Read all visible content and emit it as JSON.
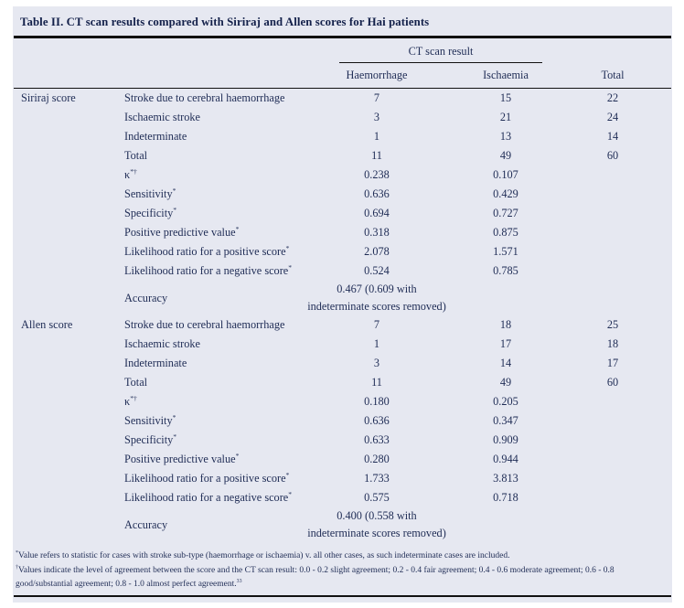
{
  "title": "Table II. CT scan results compared with Siriraj and Allen scores for Hai patients",
  "table": {
    "spanner": "CT scan result",
    "columns": [
      "Haemorrhage",
      "Ischaemia",
      "Total"
    ],
    "sections": [
      {
        "group": "Siriraj score",
        "rows": [
          {
            "label": "Stroke due to cerebral haemorrhage",
            "sup": "",
            "values": [
              "7",
              "15",
              "22"
            ]
          },
          {
            "label": "Ischaemic stroke",
            "sup": "",
            "values": [
              "3",
              "21",
              "24"
            ]
          },
          {
            "label": "Indeterminate",
            "sup": "",
            "values": [
              "1",
              "13",
              "14"
            ]
          },
          {
            "label": "Total",
            "sup": "",
            "values": [
              "11",
              "49",
              "60"
            ]
          },
          {
            "label": "κ",
            "sup": "*†",
            "values": [
              "0.238",
              "0.107",
              ""
            ]
          },
          {
            "label": "Sensitivity",
            "sup": "*",
            "values": [
              "0.636",
              "0.429",
              ""
            ]
          },
          {
            "label": "Specificity",
            "sup": "*",
            "values": [
              "0.694",
              "0.727",
              ""
            ]
          },
          {
            "label": "Positive predictive value",
            "sup": "*",
            "values": [
              "0.318",
              "0.875",
              ""
            ]
          },
          {
            "label": "Likelihood ratio for a positive score",
            "sup": "*",
            "values": [
              "2.078",
              "1.571",
              ""
            ]
          },
          {
            "label": "Likelihood ratio for a negative score",
            "sup": "*",
            "values": [
              "0.524",
              "0.785",
              ""
            ]
          }
        ],
        "accuracy": {
          "label": "Accuracy",
          "line1": "0.467 (0.609 with",
          "line2": "indeterminate scores removed)"
        }
      },
      {
        "group": "Allen score",
        "rows": [
          {
            "label": "Stroke due to cerebral haemorrhage",
            "sup": "",
            "values": [
              "7",
              "18",
              "25"
            ]
          },
          {
            "label": "Ischaemic stroke",
            "sup": "",
            "values": [
              "1",
              "17",
              "18"
            ]
          },
          {
            "label": "Indeterminate",
            "sup": "",
            "values": [
              "3",
              "14",
              "17"
            ]
          },
          {
            "label": "Total",
            "sup": "",
            "values": [
              "11",
              "49",
              "60"
            ]
          },
          {
            "label": "κ",
            "sup": "*†",
            "values": [
              "0.180",
              "0.205",
              ""
            ]
          },
          {
            "label": "Sensitivity",
            "sup": "*",
            "values": [
              "0.636",
              "0.347",
              ""
            ]
          },
          {
            "label": "Specificity",
            "sup": "*",
            "values": [
              "0.633",
              "0.909",
              ""
            ]
          },
          {
            "label": "Positive predictive value",
            "sup": "*",
            "values": [
              "0.280",
              "0.944",
              ""
            ]
          },
          {
            "label": "Likelihood ratio for a positive score",
            "sup": "*",
            "values": [
              "1.733",
              "3.813",
              ""
            ]
          },
          {
            "label": "Likelihood ratio for a negative score",
            "sup": "*",
            "values": [
              "0.575",
              "0.718",
              ""
            ]
          }
        ],
        "accuracy": {
          "label": "Accuracy",
          "line1": "0.400 (0.558 with",
          "line2": "indeterminate scores removed)"
        }
      }
    ]
  },
  "footnotes": [
    {
      "marker": "*",
      "text": "Value refers to statistic for cases with stroke sub-type (haemorrhage or ischaemia) v. all other cases, as such indeterminate cases are included.",
      "ref": ""
    },
    {
      "marker": "†",
      "text": "Values indicate the level of agreement between the score and the CT scan result: 0.0 - 0.2 slight agreement; 0.2 - 0.4 fair agreement; 0.4 - 0.6 moderate agreement; 0.6 - 0.8 good/substantial agreement; 0.8 - 1.0 almost perfect agreement.",
      "ref": "33"
    }
  ],
  "colors": {
    "panel_bg": "#e6e8f1",
    "text": "#1f2c55",
    "title_text": "#13204a",
    "rule": "#111111"
  }
}
